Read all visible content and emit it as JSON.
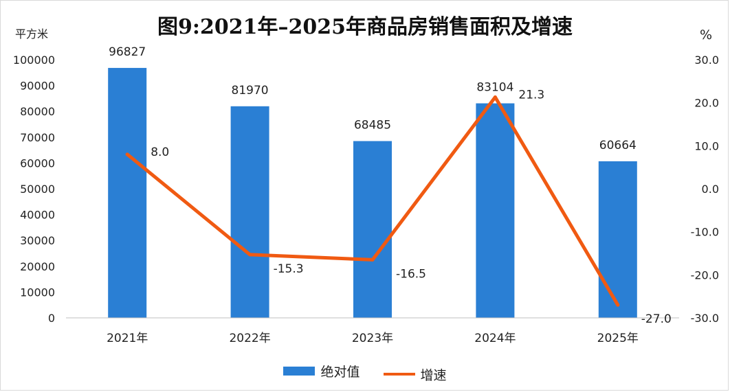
{
  "chart_data": {
    "type": "bar",
    "title": "图9:2021年–2025年商品房销售面积及增速",
    "ylabel": "平方米",
    "y2label": "%",
    "categories": [
      "2021年",
      "2022年",
      "2023年",
      "2024年",
      "2025年"
    ],
    "series": [
      {
        "name": "绝对值",
        "type": "bar",
        "axis": "left",
        "color": "#2a7fd4",
        "values": [
          96827,
          81970,
          68485,
          83104,
          60664
        ],
        "labels": [
          "96827",
          "81970",
          "68485",
          "83104",
          "60664"
        ]
      },
      {
        "name": "增速",
        "type": "line",
        "axis": "right",
        "color": "#f05a12",
        "values": [
          8.0,
          -15.3,
          -16.5,
          21.3,
          -27.0
        ],
        "labels": [
          "8.0",
          "-15.3",
          "-16.5",
          "21.3",
          "-27.0"
        ]
      }
    ],
    "ylim": [
      0,
      100000
    ],
    "yticks": [
      0,
      10000,
      20000,
      30000,
      40000,
      50000,
      60000,
      70000,
      80000,
      90000,
      100000
    ],
    "ytick_labels": [
      "0",
      "10000",
      "20000",
      "30000",
      "40000",
      "50000",
      "60000",
      "70000",
      "80000",
      "90000",
      "100000"
    ],
    "y2lim": [
      -30,
      30
    ],
    "y2ticks": [
      -30,
      -20,
      -10,
      0,
      10,
      20,
      30
    ],
    "y2tick_labels": [
      "-30.0",
      "-20.0",
      "-10.0",
      "0.0",
      "10.0",
      "20.0",
      "30.0"
    ],
    "grid": false,
    "legend_position": "bottom"
  }
}
